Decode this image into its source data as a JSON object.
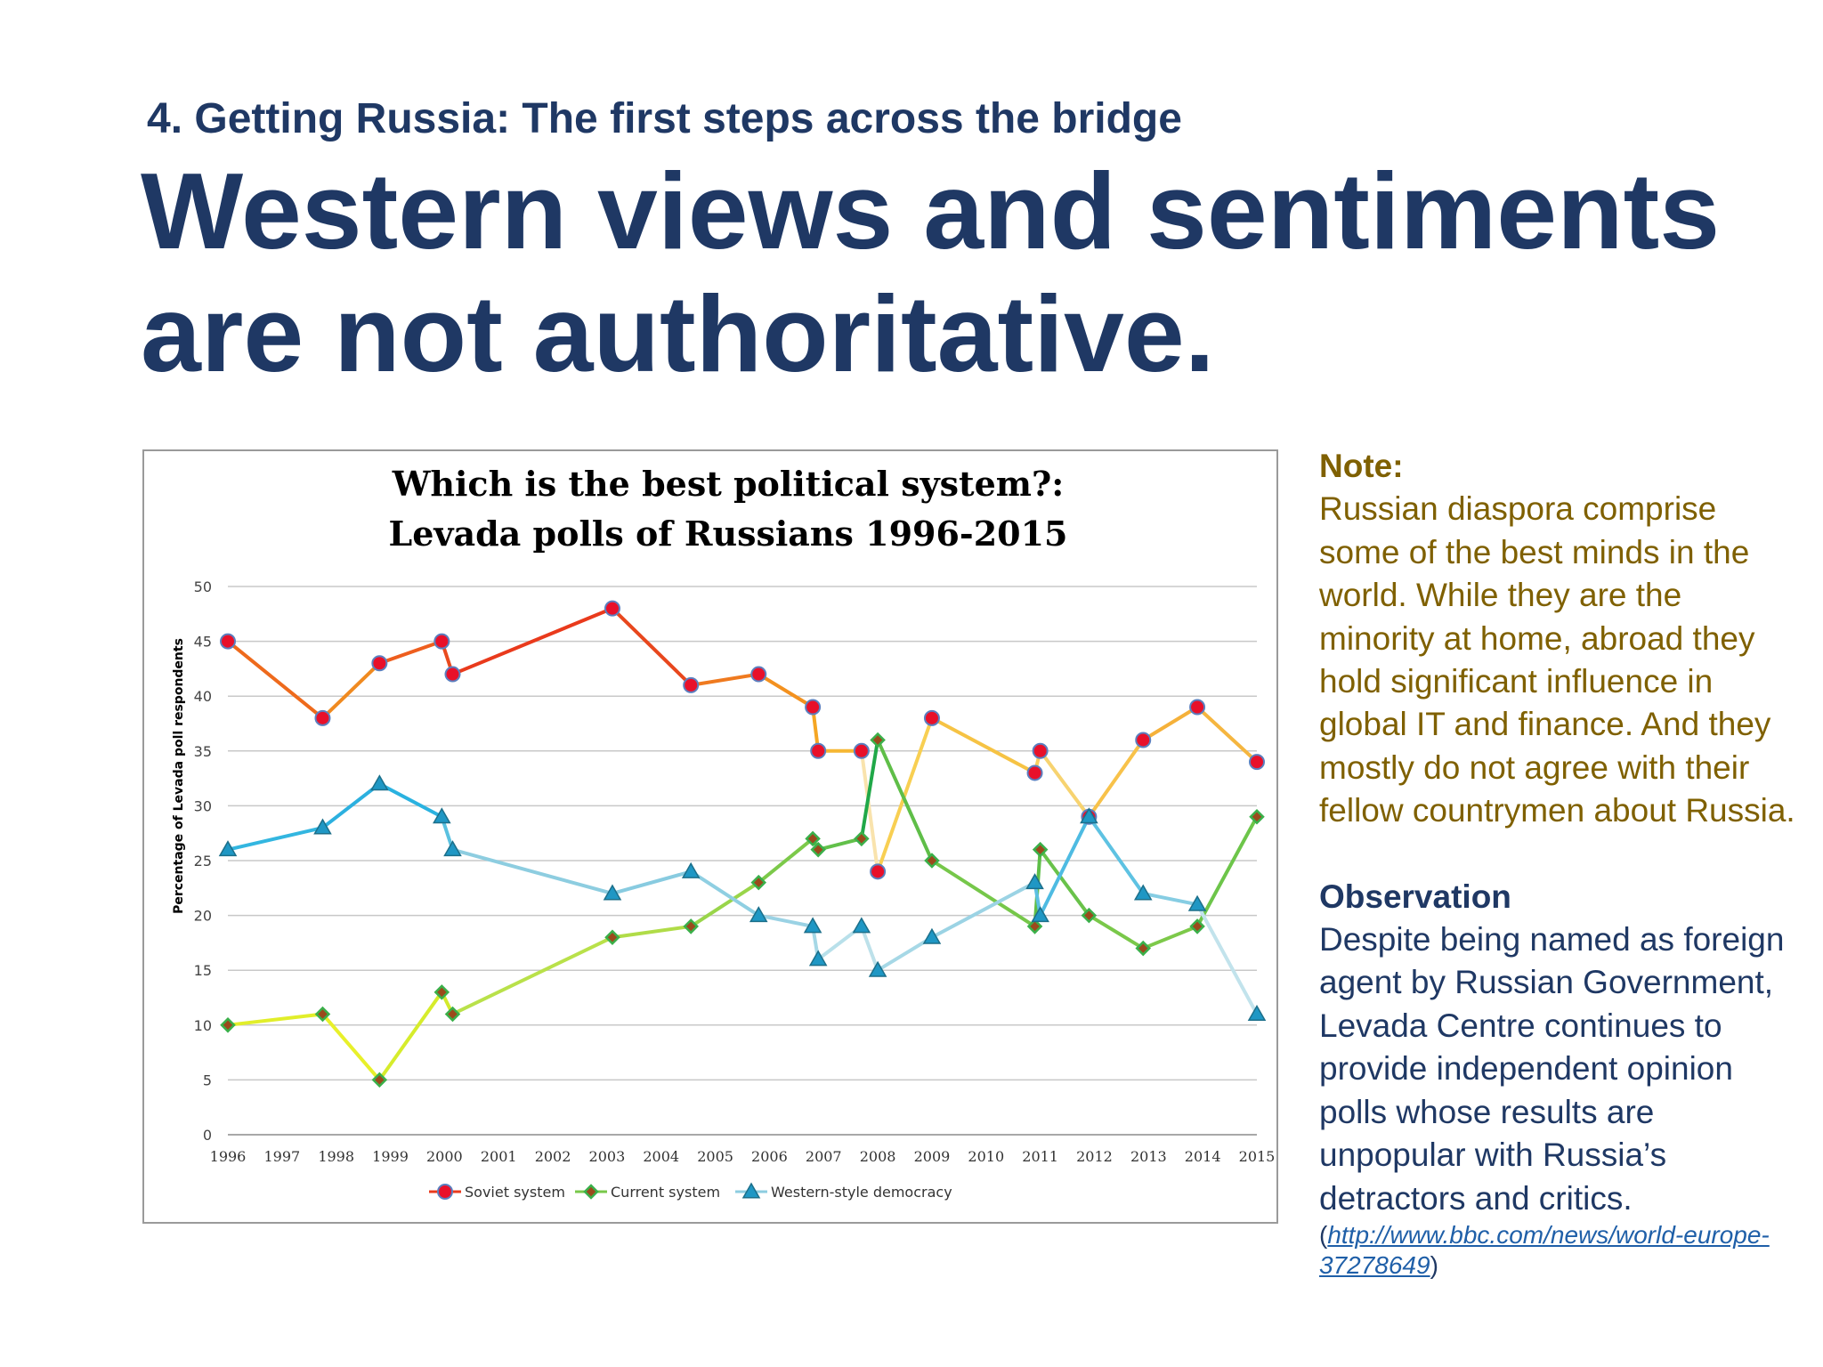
{
  "slide": {
    "subtitle": "4. Getting Russia: The first steps across the bridge",
    "headline_line1": "Western views and sentiments",
    "headline_line2": "are not authoritative."
  },
  "side": {
    "note_head": "Note:",
    "note_body": "Russian diaspora comprise some of the best minds in the world. While they are the minority at home, abroad they hold significant influence in global IT and finance. And they mostly do not agree with their fellow countrymen about Russia.",
    "obs_head": "Observation",
    "obs_body": "Despite being named as foreign agent by Russian Government, Levada Centre continues to provide independent opinion polls whose results are unpopular with Russia’s detractors and critics.",
    "src_open": "(",
    "src_link": "http://www.bbc.com/news/world-europe-37278649",
    "src_close": ")"
  },
  "chart_data": {
    "type": "line",
    "title_line1": "Which is the best political system?:",
    "title_line2": "Levada polls of Russians 1996-2015",
    "ylabel": "Percentage of Levada poll respondents",
    "xlabel": "",
    "xlim": [
      1996,
      2015
    ],
    "ylim": [
      0,
      50
    ],
    "yticks": [
      0,
      5,
      10,
      15,
      20,
      25,
      30,
      35,
      40,
      45,
      50
    ],
    "xticks": [
      1996,
      1997,
      1998,
      1999,
      2000,
      2001,
      2002,
      2003,
      2004,
      2005,
      2006,
      2007,
      2008,
      2009,
      2010,
      2011,
      2012,
      2013,
      2014,
      2015
    ],
    "grid": true,
    "legend_position": "bottom",
    "x": [
      1996,
      1997.75,
      1998.8,
      1999.95,
      2000.15,
      2003.1,
      2004.55,
      2005.8,
      2006.8,
      2006.9,
      2007.7,
      2008.0,
      2009.0,
      2010.9,
      2011.0,
      2011.9,
      2012.9,
      2013.9,
      2015.0
    ],
    "series": [
      {
        "name": "Soviet system",
        "marker": "circle",
        "values": [
          45,
          38,
          43,
          45,
          42,
          48,
          41,
          42,
          39,
          35,
          35,
          24,
          38,
          33,
          35,
          29,
          36,
          39,
          34
        ],
        "colors": [
          "#ee6a1c",
          "#f08a20",
          "#ee5e1e",
          "#e94a1e",
          "#e93a1c",
          "#e8471d",
          "#ef7a1f",
          "#f3911f",
          "#f5a623",
          "#f6b733",
          "#f9e3ad",
          "#f8cf52",
          "#f6c344",
          "#f8d060",
          "#f7d370",
          "#f8c24a",
          "#f5b13a",
          "#f5b640"
        ]
      },
      {
        "name": "Current system",
        "marker": "diamond",
        "values": [
          10,
          11,
          5,
          13,
          11,
          18,
          19,
          23,
          27,
          26,
          27,
          36,
          25,
          19,
          26,
          20,
          17,
          19,
          29
        ],
        "colors": [
          "#e1ee2a",
          "#e8f02a",
          "#d6ec2c",
          "#d3ea2c",
          "#b9e14a",
          "#b0dc48",
          "#99d54a",
          "#7cc94a",
          "#78c84a",
          "#62c04a",
          "#20a848",
          "#5fbe48",
          "#76c74a",
          "#5ebe48",
          "#69c24a",
          "#7ac84a",
          "#7dc94a",
          "#6dc54a"
        ]
      },
      {
        "name": "Western-style democracy",
        "marker": "triangle",
        "values": [
          26,
          28,
          32,
          29,
          26,
          22,
          24,
          20,
          19,
          16,
          19,
          15,
          18,
          23,
          20,
          29,
          22,
          21,
          11
        ],
        "colors": [
          "#33b6e0",
          "#2cb0df",
          "#2ab2e0",
          "#5ac1e0",
          "#8dcde0",
          "#88cbe0",
          "#8fcfe2",
          "#9ad2e4",
          "#a6d8e6",
          "#b8e0ea",
          "#bde1ea",
          "#a6d8e6",
          "#9bd3e4",
          "#5cc0e2",
          "#4ebbe2",
          "#5ec2e2",
          "#86cde3",
          "#c2e3ec"
        ]
      }
    ]
  }
}
